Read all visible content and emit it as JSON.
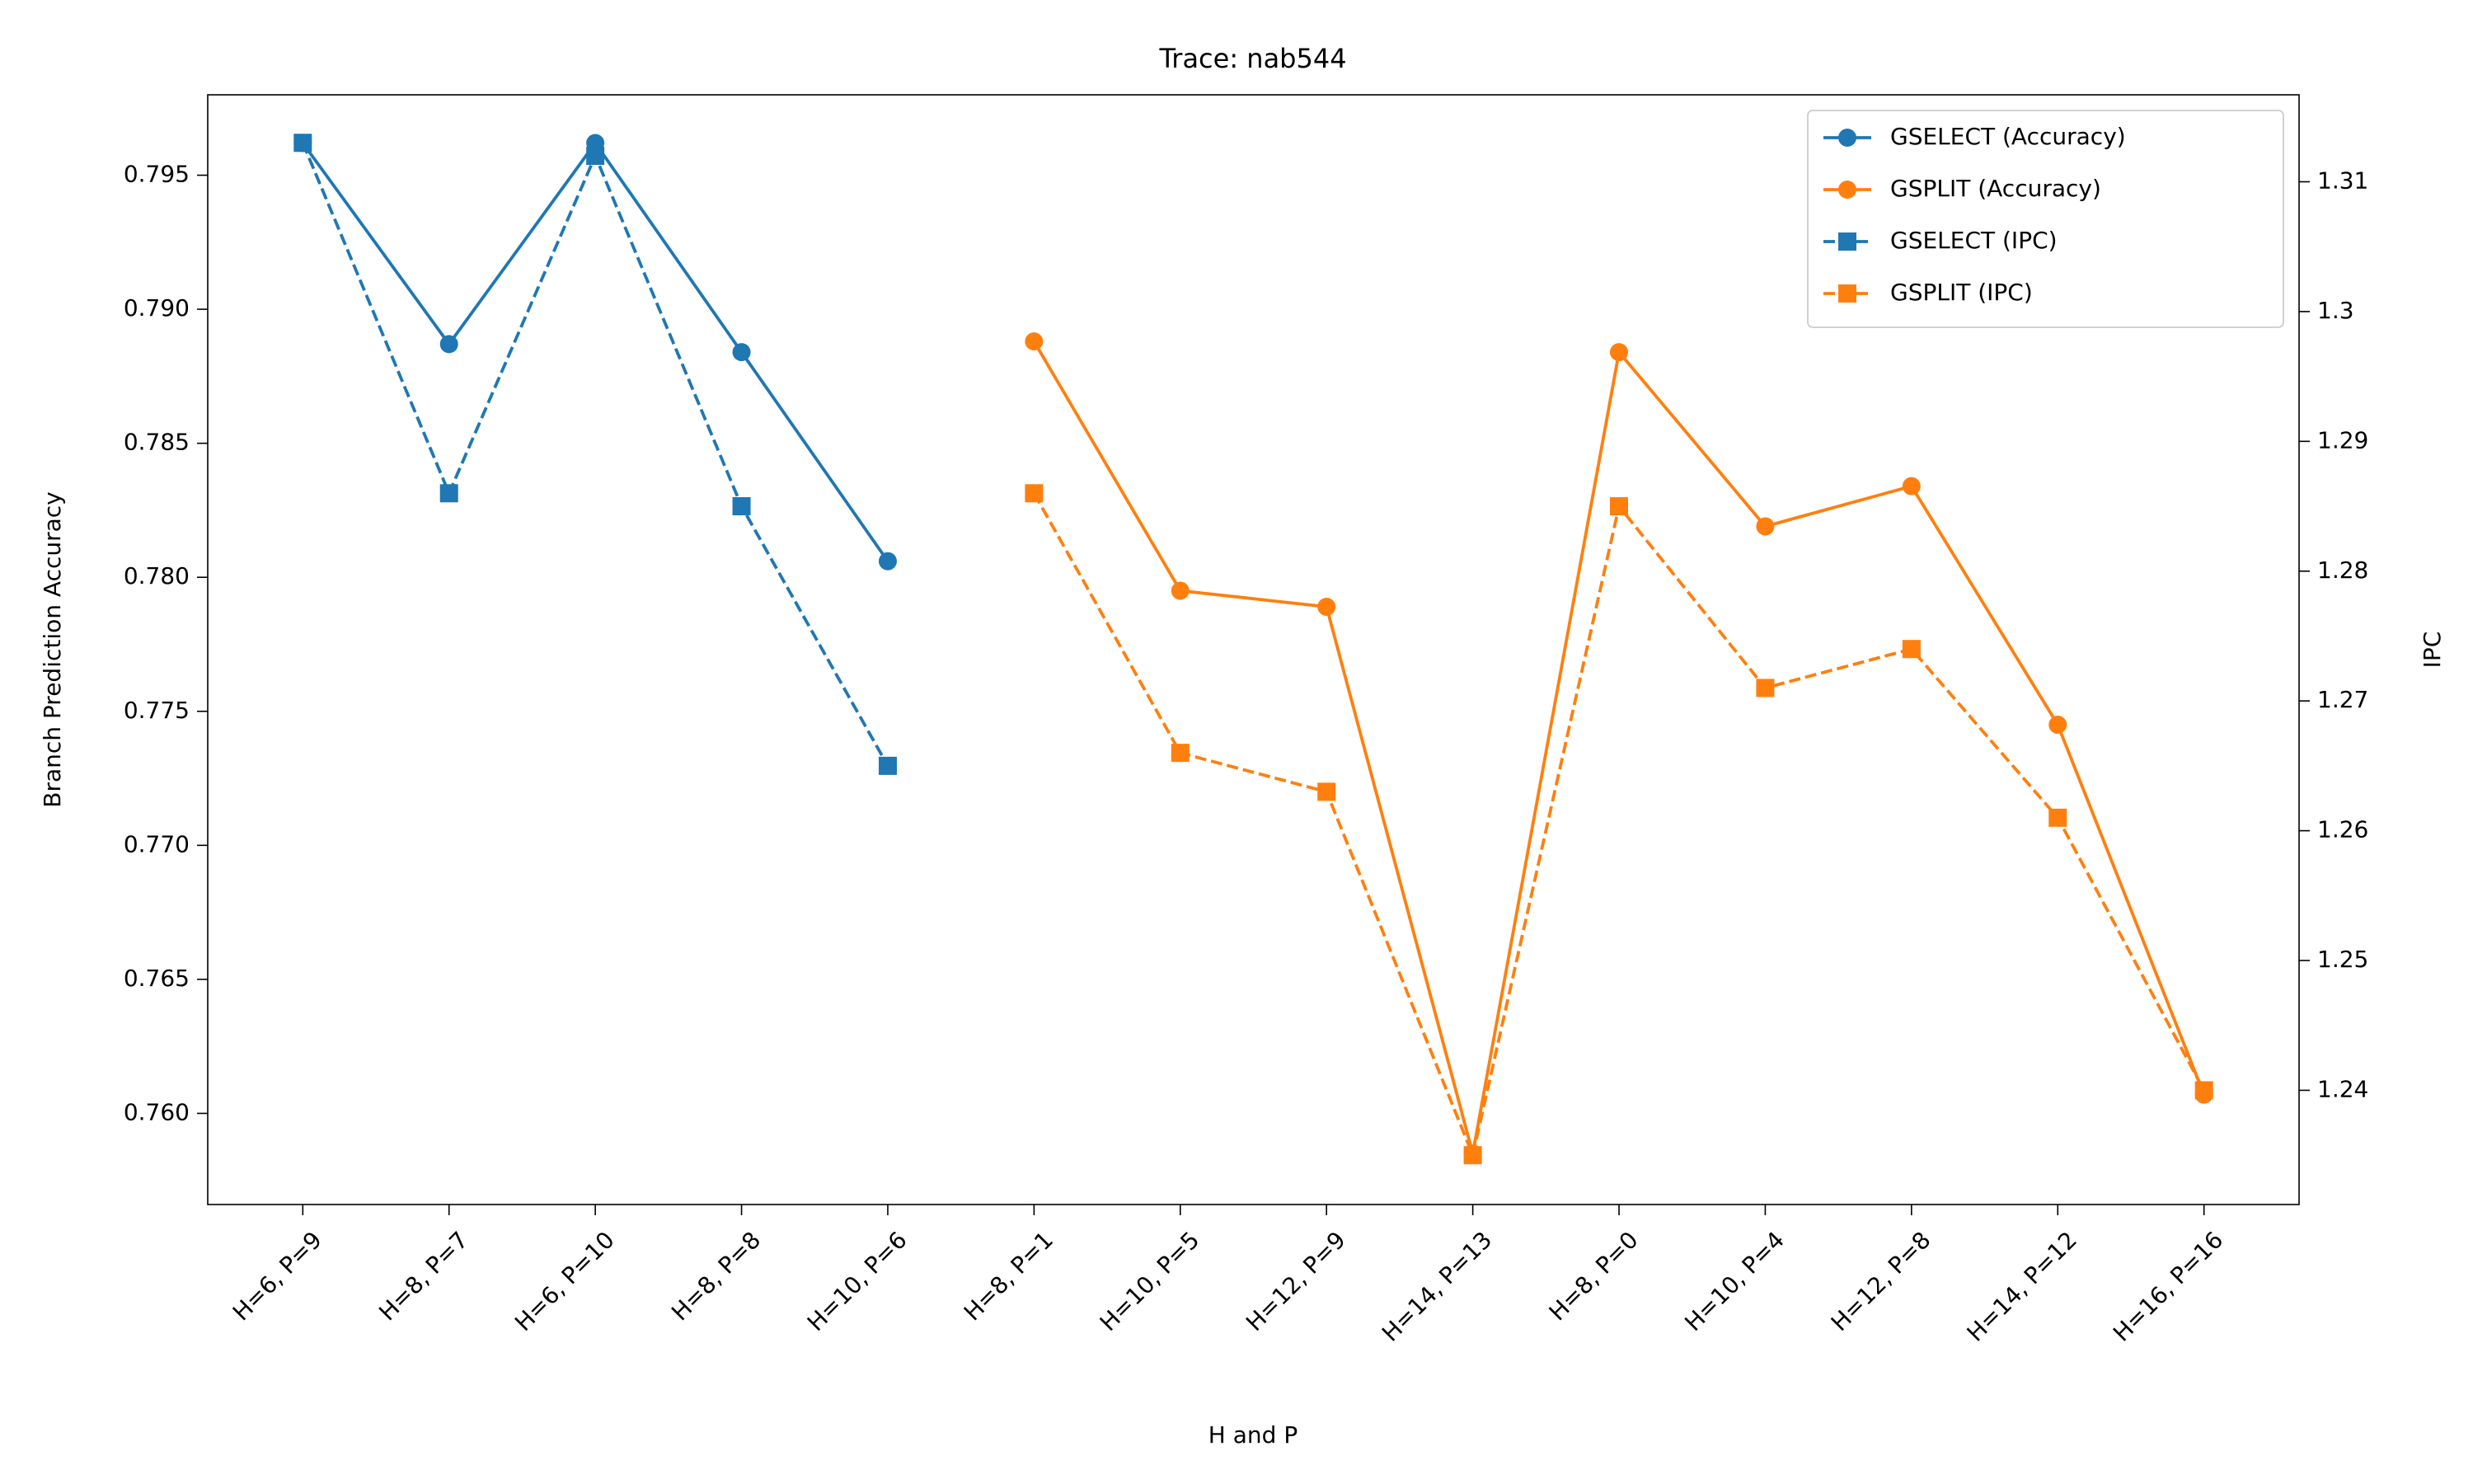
{
  "chart_data": {
    "type": "line",
    "title": "Trace: nab544",
    "xlabel": "H and P",
    "ylabel": "Branch Prediction Accuracy",
    "y2label": "IPC",
    "ycolor": "#1f77b4",
    "y2color": "#ff7f0e",
    "categories": [
      "H=6, P=9",
      "H=8, P=7",
      "H=6, P=10",
      "H=8, P=8",
      "H=10, P=6",
      "H=8, P=1",
      "H=10, P=5",
      "H=12, P=9",
      "H=14, P=13",
      "H=8, P=0",
      "H=10, P=4",
      "H=12, P=8",
      "H=14, P=12",
      "H=16, P=16"
    ],
    "series": [
      {
        "name": "GSELECT (Accuracy)",
        "color": "#1f77b4",
        "marker": "circle",
        "linestyle": "solid",
        "axis": "y",
        "values": [
          0.7962,
          0.7887,
          0.7962,
          0.7884,
          0.7806,
          null,
          null,
          null,
          null,
          null,
          null,
          null,
          null,
          null
        ]
      },
      {
        "name": "GSPLIT (Accuracy)",
        "color": "#ff7f0e",
        "marker": "circle",
        "linestyle": "solid",
        "axis": "y",
        "values": [
          null,
          null,
          null,
          null,
          null,
          0.7888,
          0.7795,
          0.7789,
          0.7585,
          0.7884,
          0.7819,
          0.7834,
          0.7745,
          0.7607
        ]
      },
      {
        "name": "GSELECT (IPC)",
        "color": "#1f77b4",
        "marker": "square",
        "linestyle": "dashed",
        "axis": "y2",
        "values": [
          1.313,
          1.286,
          1.312,
          1.285,
          1.265,
          null,
          null,
          null,
          null,
          null,
          null,
          null,
          null,
          null
        ]
      },
      {
        "name": "GSPLIT (IPC)",
        "color": "#ff7f0e",
        "marker": "square",
        "linestyle": "dashed",
        "axis": "y2",
        "values": [
          null,
          null,
          null,
          null,
          null,
          1.286,
          1.266,
          1.263,
          1.235,
          1.285,
          1.271,
          1.274,
          1.261,
          1.24
        ]
      }
    ],
    "ylim": [
      0.7566,
      0.798
    ],
    "yticks": [
      {
        "value": 0.76,
        "label": "0.760"
      },
      0.765,
      {
        "value": 0.77,
        "label": "0.770"
      },
      0.775,
      {
        "value": 0.78,
        "label": "0.780"
      },
      0.785,
      {
        "value": 0.79,
        "label": "0.790"
      },
      0.795
    ],
    "y2lim": [
      1.2312,
      1.3167
    ],
    "y2ticks": [
      1.24,
      1.25,
      1.26,
      1.27,
      1.28,
      1.29,
      1.3,
      1.31
    ],
    "legend": "upper right",
    "grid": false
  }
}
